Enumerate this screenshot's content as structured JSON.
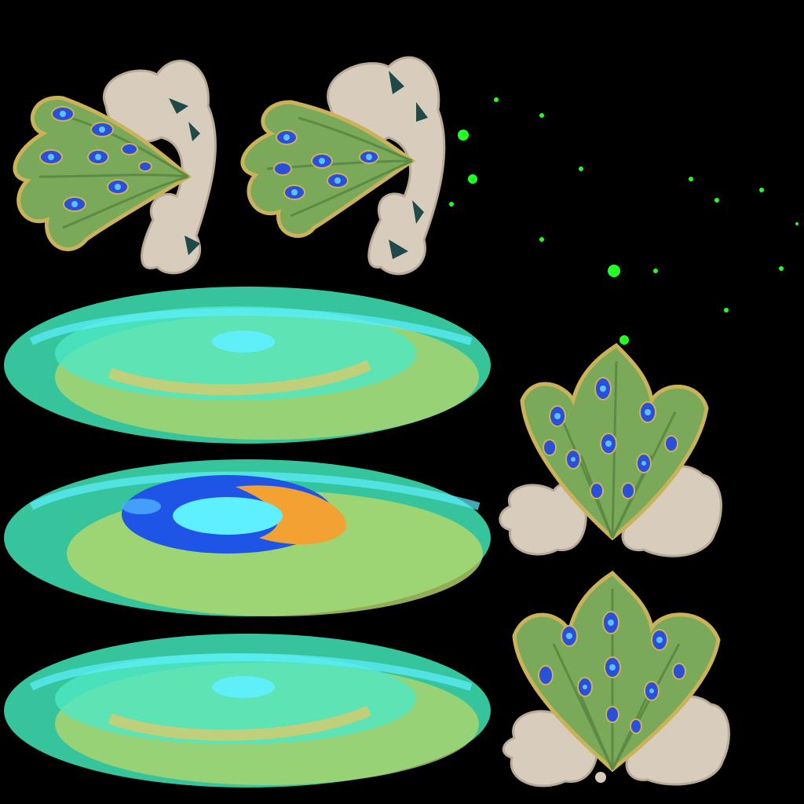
{
  "sheet": {
    "background": "#000000",
    "sprites": [
      {
        "name": "peacock-tail-cloud-left-a",
        "icon": "peacock-feather-fan-with-cloud"
      },
      {
        "name": "peacock-tail-cloud-left-b",
        "icon": "peacock-feather-fan-with-cloud"
      },
      {
        "name": "magic-circle-ring-1",
        "icon": "teal-glow-ring"
      },
      {
        "name": "magic-circle-ring-2",
        "icon": "teal-glow-ring-with-blue-orange-vortex"
      },
      {
        "name": "magic-circle-ring-3",
        "icon": "teal-glow-ring"
      },
      {
        "name": "peacock-tail-cloud-front-a",
        "icon": "peacock-feather-fan-with-cloud"
      },
      {
        "name": "peacock-tail-cloud-front-b",
        "icon": "peacock-feather-fan-with-cloud"
      },
      {
        "name": "green-sparkles",
        "icon": "sparkle-particles"
      }
    ],
    "colors": {
      "feather_green": "#7aa95a",
      "feather_edge": "#c9b25a",
      "eye_blue": "#2a4fd8",
      "eye_inner": "#5fc0ff",
      "cloud": "#d8cdbd",
      "cloud_shade": "#b9ab97",
      "ring_teal": "#3fe6b8",
      "ring_cyan": "#5ff0ff",
      "ring_yellow": "#b8d86a",
      "vortex_blue": "#1f55e6",
      "vortex_orange": "#f2a233",
      "sparkle": "#22ff22"
    }
  }
}
